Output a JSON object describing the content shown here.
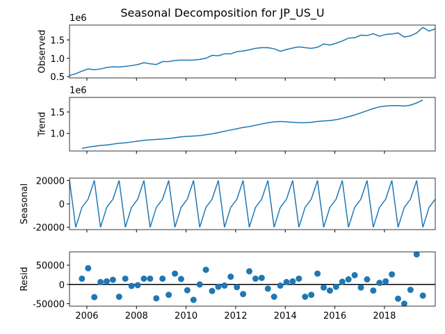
{
  "title": "Seasonal Decomposition for JP_US_U",
  "chart_data": [
    {
      "type": "line",
      "ylabel": "Observed",
      "offset_text": "1e6",
      "color": "#1f77b4",
      "x": [
        2005.3,
        2005.55,
        2005.8,
        2006.05,
        2006.3,
        2006.55,
        2006.8,
        2007.05,
        2007.3,
        2007.55,
        2007.8,
        2008.05,
        2008.3,
        2008.55,
        2008.8,
        2009.05,
        2009.3,
        2009.55,
        2009.8,
        2010.05,
        2010.3,
        2010.55,
        2010.8,
        2011.05,
        2011.3,
        2011.55,
        2011.8,
        2012.05,
        2012.3,
        2012.55,
        2012.8,
        2013.05,
        2013.3,
        2013.55,
        2013.8,
        2014.05,
        2014.3,
        2014.55,
        2014.8,
        2015.05,
        2015.3,
        2015.55,
        2015.8,
        2016.05,
        2016.3,
        2016.55,
        2016.8,
        2017.05,
        2017.3,
        2017.55,
        2017.8,
        2018.05,
        2018.3,
        2018.55,
        2018.8,
        2019.05,
        2019.3,
        2019.55,
        2019.8,
        2020.05
      ],
      "values": [
        0.53,
        0.58,
        0.65,
        0.71,
        0.69,
        0.71,
        0.75,
        0.77,
        0.76,
        0.78,
        0.8,
        0.83,
        0.88,
        0.85,
        0.83,
        0.91,
        0.91,
        0.94,
        0.95,
        0.95,
        0.95,
        0.97,
        1.0,
        1.08,
        1.07,
        1.12,
        1.12,
        1.18,
        1.2,
        1.23,
        1.27,
        1.29,
        1.29,
        1.26,
        1.19,
        1.24,
        1.28,
        1.31,
        1.29,
        1.27,
        1.3,
        1.39,
        1.36,
        1.41,
        1.47,
        1.55,
        1.56,
        1.63,
        1.62,
        1.67,
        1.6,
        1.65,
        1.66,
        1.69,
        1.58,
        1.61,
        1.69,
        1.84,
        1.74,
        1.8
      ],
      "xlim": [
        2005.3,
        2020.05
      ],
      "xticks": [
        2006,
        2008,
        2010,
        2012,
        2014,
        2016,
        2018
      ],
      "ylim": [
        0.465,
        1.905
      ],
      "yticks": [
        0.5,
        {
          "value": 1,
          "label": "1.0"
        },
        1.5
      ]
    },
    {
      "type": "line",
      "ylabel": "Trend",
      "offset_text": "1e6",
      "color": "#1f77b4",
      "x": [
        2005.3,
        2005.55,
        2005.8,
        2006.05,
        2006.3,
        2006.55,
        2006.8,
        2007.05,
        2007.3,
        2007.55,
        2007.8,
        2008.05,
        2008.3,
        2008.55,
        2008.8,
        2009.05,
        2009.3,
        2009.55,
        2009.8,
        2010.05,
        2010.3,
        2010.55,
        2010.8,
        2011.05,
        2011.3,
        2011.55,
        2011.8,
        2012.05,
        2012.3,
        2012.55,
        2012.8,
        2013.05,
        2013.3,
        2013.55,
        2013.8,
        2014.05,
        2014.3,
        2014.55,
        2014.8,
        2015.05,
        2015.3,
        2015.55,
        2015.8,
        2016.05,
        2016.3,
        2016.55,
        2016.8,
        2017.05,
        2017.3,
        2017.55,
        2017.8,
        2018.05,
        2018.3,
        2018.55,
        2018.8,
        2019.05,
        2019.3,
        2019.55,
        2019.8,
        2020.05
      ],
      "values": [
        null,
        null,
        0.65,
        0.68,
        0.7,
        0.72,
        0.73,
        0.75,
        0.77,
        0.78,
        0.8,
        0.82,
        0.84,
        0.85,
        0.86,
        0.87,
        0.88,
        0.9,
        0.92,
        0.93,
        0.94,
        0.95,
        0.97,
        0.99,
        1.02,
        1.05,
        1.08,
        1.11,
        1.14,
        1.16,
        1.19,
        1.22,
        1.25,
        1.27,
        1.28,
        1.27,
        1.26,
        1.25,
        1.25,
        1.26,
        1.28,
        1.29,
        1.3,
        1.32,
        1.35,
        1.39,
        1.43,
        1.48,
        1.53,
        1.58,
        1.62,
        1.64,
        1.65,
        1.65,
        1.64,
        1.66,
        1.71,
        1.78,
        null,
        null
      ],
      "xlim": [
        2005.3,
        2020.05
      ],
      "xticks": [
        2006,
        2008,
        2010,
        2012,
        2014,
        2016,
        2018
      ],
      "ylim": [
        0.59,
        1.84
      ],
      "yticks": [
        {
          "value": 1,
          "label": "1.0"
        },
        1.5
      ]
    },
    {
      "type": "line",
      "ylabel": "Seasonal",
      "color": "#1f77b4",
      "x": [
        2005.3,
        2005.55,
        2005.8,
        2006.05,
        2006.3,
        2006.55,
        2006.8,
        2007.05,
        2007.3,
        2007.55,
        2007.8,
        2008.05,
        2008.3,
        2008.55,
        2008.8,
        2009.05,
        2009.3,
        2009.55,
        2009.8,
        2010.05,
        2010.3,
        2010.55,
        2010.8,
        2011.05,
        2011.3,
        2011.55,
        2011.8,
        2012.05,
        2012.3,
        2012.55,
        2012.8,
        2013.05,
        2013.3,
        2013.55,
        2013.8,
        2014.05,
        2014.3,
        2014.55,
        2014.8,
        2015.05,
        2015.3,
        2015.55,
        2015.8,
        2016.05,
        2016.3,
        2016.55,
        2016.8,
        2017.05,
        2017.3,
        2017.55,
        2017.8,
        2018.05,
        2018.3,
        2018.55,
        2018.8,
        2019.05,
        2019.3,
        2019.55,
        2019.8,
        2020.05
      ],
      "values": [
        20000,
        -20000,
        -3000,
        4000,
        20000,
        -20000,
        -3000,
        4000,
        20000,
        -20000,
        -3000,
        4000,
        20000,
        -20000,
        -3000,
        4000,
        20000,
        -20000,
        -3000,
        4000,
        20000,
        -20000,
        -3000,
        4000,
        20000,
        -20000,
        -3000,
        4000,
        20000,
        -20000,
        -3000,
        4000,
        20000,
        -20000,
        -3000,
        4000,
        20000,
        -20000,
        -3000,
        4000,
        20000,
        -20000,
        -3000,
        4000,
        20000,
        -20000,
        -3000,
        4000,
        20000,
        -20000,
        -3000,
        4000,
        20000,
        -20000,
        -3000,
        4000,
        20000,
        -20000,
        -3000,
        4000
      ],
      "xlim": [
        2005.3,
        2020.05
      ],
      "xticks": [
        2006,
        2008,
        2010,
        2012,
        2014,
        2016,
        2018
      ],
      "ylim": [
        -22000,
        22000
      ],
      "yticks": [
        -20000,
        0,
        20000
      ]
    },
    {
      "type": "scatter",
      "ylabel": "Resid",
      "color": "#1f77b4",
      "zero_line": true,
      "x": [
        2005.3,
        2005.55,
        2005.8,
        2006.05,
        2006.3,
        2006.55,
        2006.8,
        2007.05,
        2007.3,
        2007.55,
        2007.8,
        2008.05,
        2008.3,
        2008.55,
        2008.8,
        2009.05,
        2009.3,
        2009.55,
        2009.8,
        2010.05,
        2010.3,
        2010.55,
        2010.8,
        2011.05,
        2011.3,
        2011.55,
        2011.8,
        2012.05,
        2012.3,
        2012.55,
        2012.8,
        2013.05,
        2013.3,
        2013.55,
        2013.8,
        2014.05,
        2014.3,
        2014.55,
        2014.8,
        2015.05,
        2015.3,
        2015.55,
        2015.8,
        2016.05,
        2016.3,
        2016.55,
        2016.8,
        2017.05,
        2017.3,
        2017.55,
        2017.8,
        2018.05,
        2018.3,
        2018.55,
        2018.8,
        2019.05,
        2019.3,
        2019.55,
        2019.8,
        2020.05
      ],
      "values": [
        null,
        null,
        15000,
        42000,
        -33000,
        6000,
        8000,
        12000,
        -32000,
        15000,
        -4000,
        -2000,
        15000,
        15000,
        -36000,
        15000,
        -27000,
        28000,
        14000,
        -15000,
        -40000,
        0,
        38000,
        -17000,
        -6000,
        -3000,
        20000,
        -7000,
        -25000,
        34000,
        15000,
        17000,
        -11000,
        -32000,
        -3000,
        6000,
        8000,
        15000,
        -32000,
        -27000,
        28000,
        -8000,
        -16000,
        -6000,
        7000,
        13000,
        24000,
        -8000,
        13000,
        -16000,
        4000,
        8000,
        26000,
        -37000,
        -50000,
        -14000,
        78000,
        -29000,
        null,
        null
      ],
      "xlim": [
        2005.3,
        2020.05
      ],
      "xticks": [
        2006,
        2008,
        2010,
        2012,
        2014,
        2016,
        2018
      ],
      "ylim": [
        -56400,
        84400
      ],
      "yticks": [
        -50000,
        0,
        50000
      ]
    }
  ]
}
